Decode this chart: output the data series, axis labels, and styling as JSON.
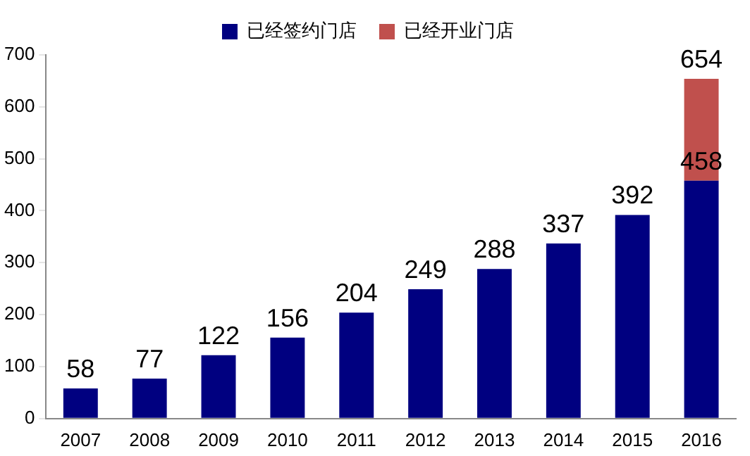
{
  "chart_data": {
    "type": "bar",
    "stacked": true,
    "categories": [
      "2007",
      "2008",
      "2009",
      "2010",
      "2011",
      "2012",
      "2013",
      "2014",
      "2015",
      "2016"
    ],
    "series": [
      {
        "name": "已经签约门店",
        "color": "#000080",
        "values": [
          58,
          77,
          122,
          156,
          204,
          249,
          288,
          337,
          392,
          458
        ],
        "value_labels": [
          "58",
          "77",
          "122",
          "156",
          "204",
          "249",
          "288",
          "337",
          "392",
          "458"
        ]
      },
      {
        "name": "已经开业门店",
        "color": "#c0504d",
        "values": [
          null,
          null,
          null,
          null,
          null,
          null,
          null,
          null,
          null,
          196
        ]
      }
    ],
    "totals": [
      null,
      null,
      null,
      null,
      null,
      null,
      null,
      null,
      null,
      "654"
    ],
    "ylim": [
      0,
      700
    ],
    "yticks": [
      0,
      100,
      200,
      300,
      400,
      500,
      600,
      700
    ],
    "grid": false,
    "legend": "top"
  }
}
